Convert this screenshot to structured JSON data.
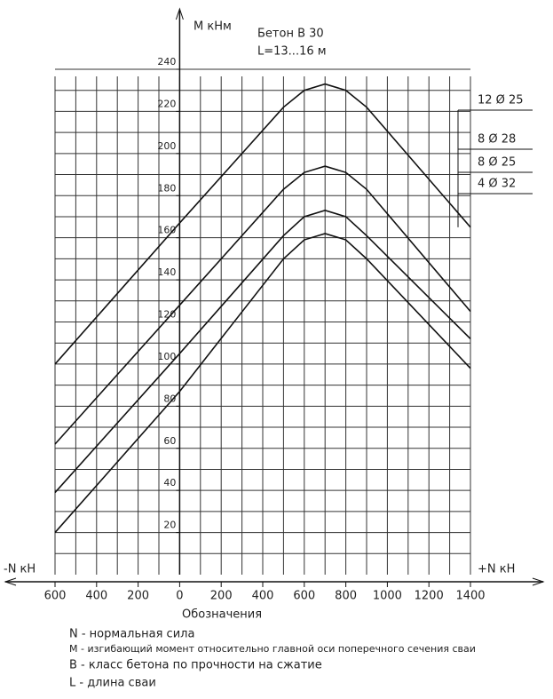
{
  "chart_data": {
    "type": "line",
    "y_label": "M кНм",
    "title": "Бетон В 30",
    "subtitle": "L=13...16 м",
    "x_label_left": "-N кН",
    "x_label_right": "+N кН",
    "x": [
      -600,
      0,
      500,
      600,
      700,
      800,
      900,
      1400
    ],
    "series": [
      {
        "name": "12 Ø 25",
        "color": "#111111",
        "values": [
          100,
          167,
          222,
          230,
          233,
          230,
          222,
          165
        ]
      },
      {
        "name": "8 Ø 28",
        "color": "#111111",
        "values": [
          62,
          128,
          183,
          191,
          194,
          191,
          183,
          125
        ]
      },
      {
        "name": "8 Ø 25",
        "color": "#111111",
        "values": [
          39,
          105,
          161,
          170,
          173,
          170,
          161,
          112
        ]
      },
      {
        "name": "4 Ø 32",
        "color": "#111111",
        "values": [
          20,
          87,
          150,
          159,
          162,
          159,
          150,
          98
        ]
      }
    ],
    "xlim": [
      -600,
      1400
    ],
    "ylim": [
      0,
      240
    ],
    "xticks": [
      {
        "value": -600,
        "label": "600"
      },
      {
        "value": -400,
        "label": "400"
      },
      {
        "value": -200,
        "label": "200"
      },
      0,
      200,
      400,
      600,
      800,
      1000,
      1200,
      1400
    ],
    "yticks": [
      20,
      40,
      60,
      80,
      100,
      120,
      140,
      160,
      180,
      200,
      220,
      240
    ],
    "xgrid": [
      -600,
      -500,
      -400,
      -300,
      -200,
      -100,
      0,
      100,
      200,
      300,
      400,
      500,
      600,
      700,
      800,
      900,
      1000,
      1100,
      1200,
      1300,
      1400
    ],
    "ygrid": [
      10,
      20,
      30,
      40,
      50,
      60,
      70,
      80,
      90,
      100,
      110,
      120,
      130,
      140,
      150,
      160,
      170,
      180,
      190,
      200,
      210,
      220,
      230,
      240
    ],
    "grid": true,
    "legend_title": "Обозначения",
    "legend_lines": [
      "N - нормальная сила",
      "M - изгибающий момент относительно главной оси поперечного сечения сваи",
      "B - класс бетона по прочности на сжатие",
      "L - длина сваи"
    ]
  }
}
